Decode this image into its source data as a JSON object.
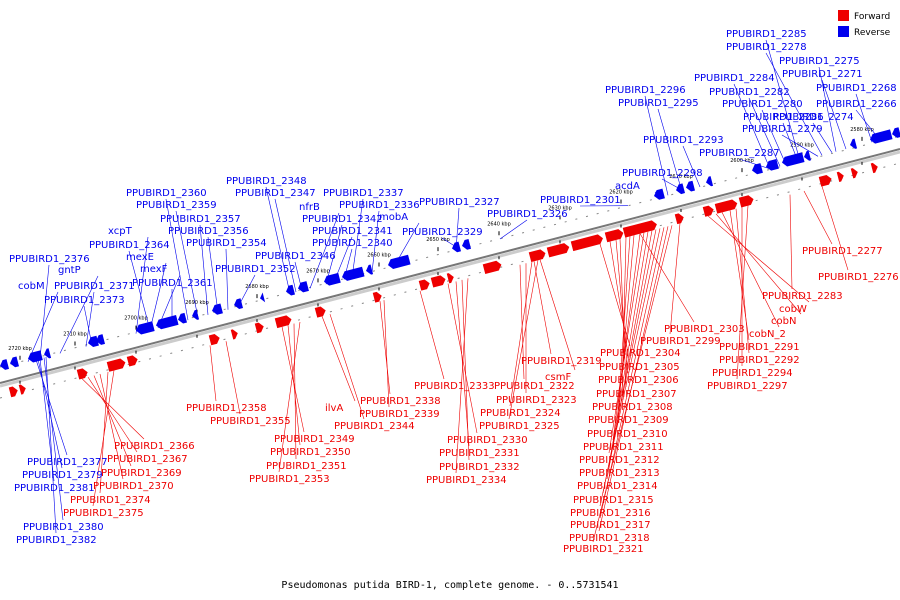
{
  "caption": "Pseudomonas putida BIRD-1, complete genome. - 0..5731541",
  "legend": {
    "forward": "Forward",
    "reverse": "Reverse"
  },
  "colors": {
    "forward": "#ee0000",
    "reverse": "#0000ee",
    "axis": "#777777"
  },
  "ticks": [
    "2720 kbp",
    "2710 kbp",
    "2700 kbp",
    "2690 kbp",
    "2680 kbp",
    "2670 kbp",
    "2660 kbp",
    "2650 kbp",
    "2640 kbp",
    "2630 kbp",
    "2620 kbp",
    "2610 kbp",
    "2600 kbp",
    "2590 kbp",
    "2580 kbp"
  ],
  "reverse_labels": [
    "PPUBIRD1_2376",
    "cobM",
    "gntP",
    "PPUBIRD1_2371",
    "PPUBIRD1_2373",
    "xcpT",
    "PPUBIRD1_2364",
    "mexE",
    "mexF",
    "PPUBIRD1_2361",
    "PPUBIRD1_2360",
    "PPUBIRD1_2359",
    "PPUBIRD1_2357",
    "PPUBIRD1_2356",
    "PPUBIRD1_2354",
    "PPUBIRD1_2352",
    "PPUBIRD1_2348",
    "PPUBIRD1_2347",
    "PPUBIRD1_2346",
    "nfrB",
    "PPUBIRD1_2342",
    "PPUBIRD1_2341",
    "PPUBIRD1_2340",
    "PPUBIRD1_2337",
    "PPUBIRD1_2336",
    "mobA",
    "PPUBIRD1_2329",
    "PPUBIRD1_2327",
    "PPUBIRD1_2326",
    "PPUBIRD1_2301",
    "acdA",
    "PPUBIRD1_2298",
    "PPUBIRD1_2296",
    "PPUBIRD1_2295",
    "PPUBIRD1_2293",
    "PPUBIRD1_2287",
    "PPUBIRD1_2285",
    "PPUBIRD1_2278",
    "PPUBIRD1_2284",
    "PPUBIRD1_2282",
    "PPUBIRD1_2275",
    "PPUBIRD1_2271",
    "PPUBIRD1_2280",
    "PPUBIRD1_2286",
    "PPUBIRD1_2279",
    "PPUBIRD1_2268",
    "PPUBIRD1_2274",
    "PPUBIRD1_2266",
    "PPUBIRD1_2377",
    "PPUBIRD1_2379",
    "PPUBIRD1_2381",
    "PPUBIRD1_2380",
    "PPUBIRD1_2382"
  ],
  "forward_labels": [
    "PPUBIRD1_2366",
    "PPUBIRD1_2367",
    "PPUBIRD1_2369",
    "PPUBIRD1_2370",
    "PPUBIRD1_2374",
    "PPUBIRD1_2375",
    "PPUBIRD1_2358",
    "PPUBIRD1_2355",
    "PPUBIRD1_2349",
    "PPUBIRD1_2350",
    "PPUBIRD1_2351",
    "PPUBIRD1_2353",
    "ilvA",
    "PPUBIRD1_2344",
    "PPUBIRD1_2338",
    "PPUBIRD1_2339",
    "PPUBIRD1_2333",
    "PPUBIRD1_2322",
    "PPUBIRD1_2323",
    "PPUBIRD1_2324",
    "PPUBIRD1_2325",
    "PPUBIRD1_2330",
    "PPUBIRD1_2331",
    "PPUBIRD1_2332",
    "PPUBIRD1_2334",
    "PPUBIRD1_2319",
    "csmF",
    "PPUBIRD1_2304",
    "PPUBIRD1_2305",
    "PPUBIRD1_2306",
    "PPUBIRD1_2307",
    "PPUBIRD1_2308",
    "PPUBIRD1_2309",
    "PPUBIRD1_2310",
    "PPUBIRD1_2311",
    "PPUBIRD1_2312",
    "PPUBIRD1_2313",
    "PPUBIRD1_2314",
    "PPUBIRD1_2315",
    "PPUBIRD1_2316",
    "PPUBIRD1_2317",
    "PPUBIRD1_2318",
    "PPUBIRD1_2321",
    "PPUBIRD1_2303",
    "PPUBIRD1_2299",
    "cobW",
    "cobN",
    "cobN_2",
    "PPUBIRD1_2291",
    "PPUBIRD1_2292",
    "PPUBIRD1_2294",
    "PPUBIRD1_2297",
    "PPUBIRD1_2283",
    "PPUBIRD1_2277",
    "PPUBIRD1_2276"
  ]
}
